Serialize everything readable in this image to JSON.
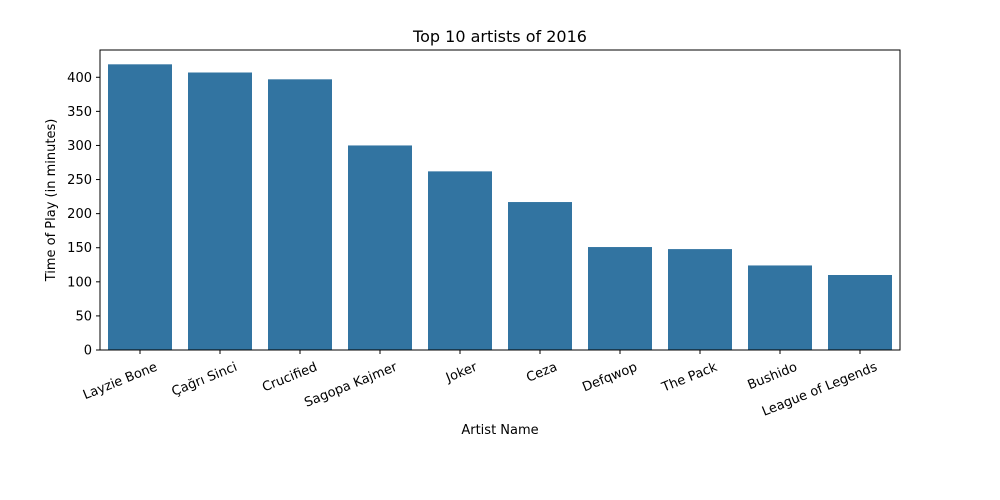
{
  "chart_data": {
    "type": "bar",
    "title": "Top 10 artists of 2016",
    "xlabel": "Artist Name",
    "ylabel": "Time of Play (in minutes)",
    "categories": [
      "Layzie Bone",
      "Çağrı Sinci",
      "Crucified",
      "Sagopa Kajmer",
      "Joker",
      "Ceza",
      "Defqwop",
      "The Pack",
      "Bushido",
      "League of Legends"
    ],
    "values": [
      419,
      407,
      397,
      300,
      262,
      217,
      151,
      148,
      124,
      110
    ],
    "ylim": [
      0,
      440
    ],
    "yticks": [
      0,
      50,
      100,
      150,
      200,
      250,
      300,
      350,
      400
    ],
    "grid": false,
    "colors": {
      "bar": "#3274a1",
      "axis": "#000000"
    }
  }
}
